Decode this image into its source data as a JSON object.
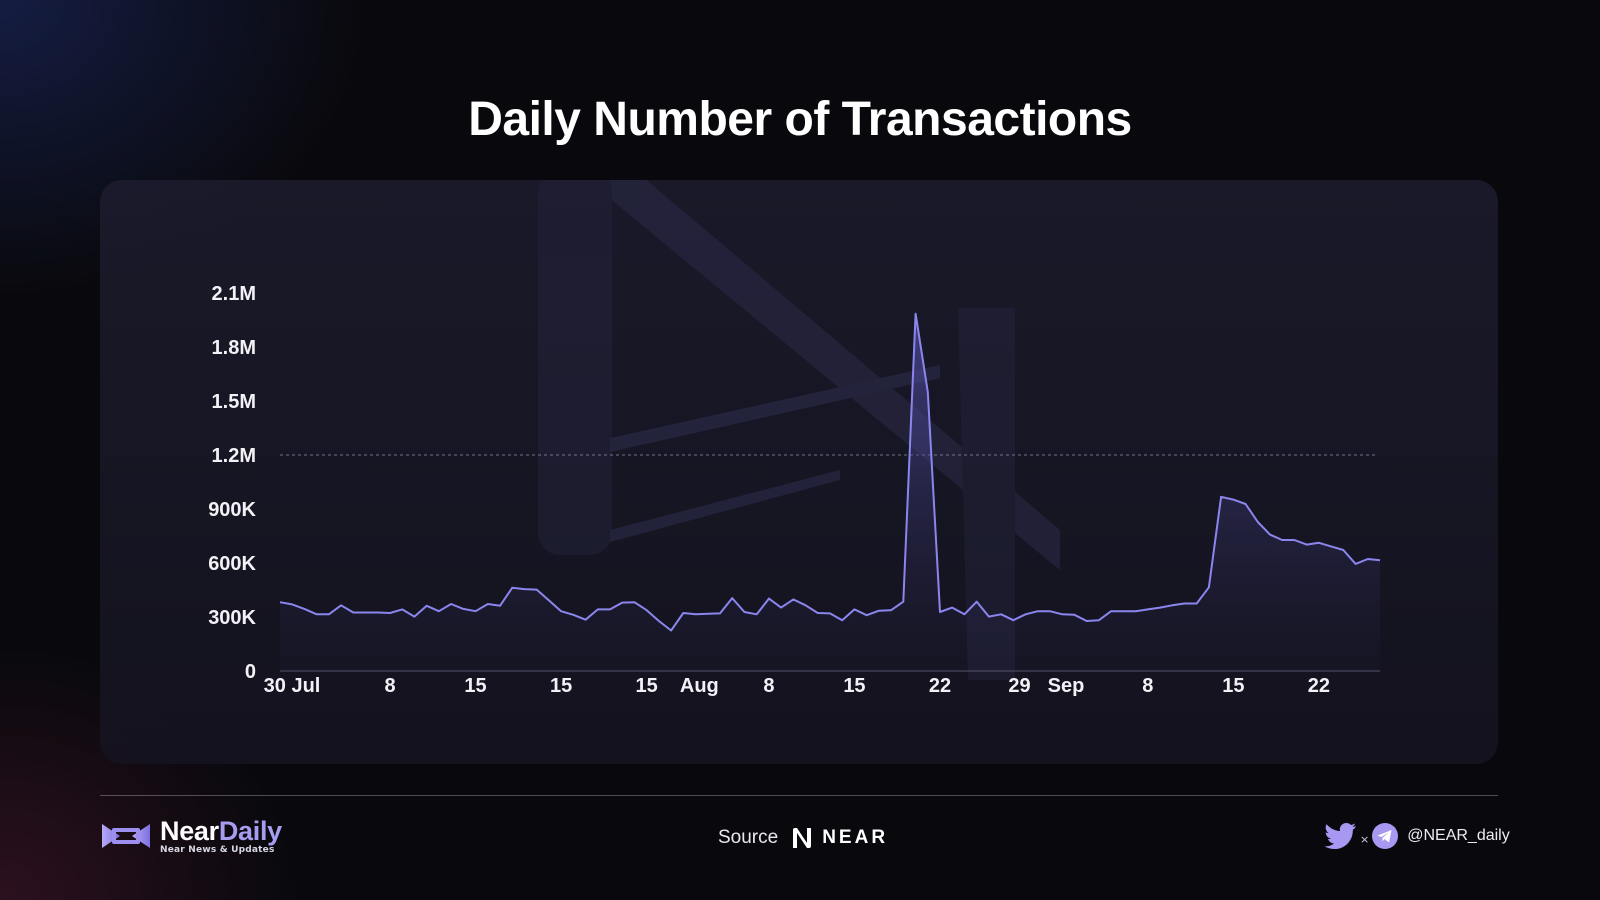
{
  "title": "Daily Number of Transactions",
  "colors": {
    "line": "#8b86ee",
    "area_top": "#5b57b8",
    "brand_accent": "#a69cf0"
  },
  "chart_data": {
    "type": "area",
    "title": "Daily Number of Transactions",
    "xlabel": "",
    "ylabel": "",
    "ylim": [
      0,
      2100000
    ],
    "y_ticks": [
      "0",
      "300K",
      "600K",
      "900K",
      "1.2M",
      "1.5M",
      "1.8M",
      "2.1M"
    ],
    "y_tick_values": [
      0,
      300000,
      600000,
      900000,
      1200000,
      1500000,
      1800000,
      2100000
    ],
    "reference_line": 1200000,
    "x_tick_labels": [
      "30 Jul",
      "8",
      "15",
      "15",
      "15",
      "Aug",
      "8",
      "15",
      "22",
      "29",
      "Sep",
      "8",
      "15",
      "22"
    ],
    "x_tick_index": [
      0,
      9,
      16,
      23,
      30,
      33,
      40,
      47,
      54,
      61,
      63,
      71,
      78,
      85
    ],
    "grid": "dashed line at 1.2M only",
    "legend": "none",
    "values": [
      382000,
      370000,
      345000,
      315000,
      315000,
      365000,
      325000,
      325000,
      325000,
      322000,
      342000,
      302000,
      362000,
      332000,
      372000,
      345000,
      332000,
      372000,
      362000,
      462000,
      455000,
      452000,
      392000,
      332000,
      312000,
      285000,
      342000,
      342000,
      380000,
      382000,
      338000,
      278000,
      225000,
      322000,
      315000,
      318000,
      320000,
      405000,
      328000,
      315000,
      402000,
      352000,
      398000,
      365000,
      322000,
      320000,
      282000,
      342000,
      310000,
      335000,
      338000,
      385000,
      1985000,
      1550000,
      328000,
      352000,
      315000,
      385000,
      302000,
      315000,
      282000,
      315000,
      332000,
      332000,
      315000,
      312000,
      278000,
      282000,
      332000,
      332000,
      332000,
      342000,
      352000,
      365000,
      375000,
      375000,
      465000,
      968000,
      952000,
      928000,
      828000,
      758000,
      728000,
      728000,
      702000,
      712000,
      692000,
      672000,
      595000,
      622000,
      615000
    ]
  },
  "footer": {
    "brand_name_a": "Near",
    "brand_name_b": "Daily",
    "brand_tagline": "Near News & Updates",
    "source_label": "Source",
    "source_name": "NEAR",
    "social_separator": "×",
    "social_handle": "@NEAR_daily"
  }
}
